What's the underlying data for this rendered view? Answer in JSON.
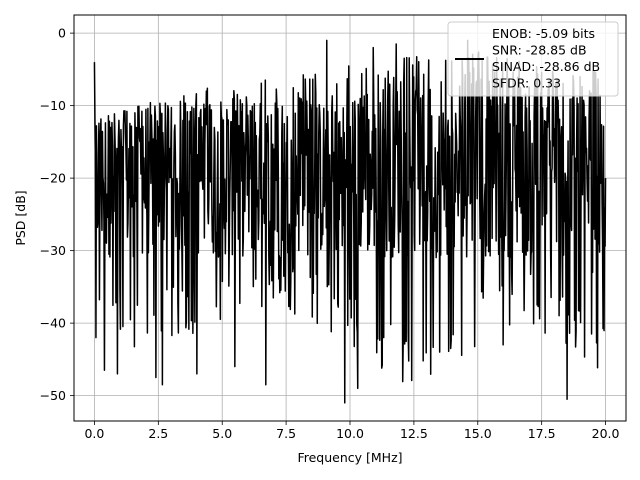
{
  "chart_data": {
    "type": "line",
    "xlabel": "Frequency [MHz]",
    "ylabel": "PSD [dB]",
    "xlim": [
      -0.8,
      20.8
    ],
    "ylim": [
      -53.5,
      2.5
    ],
    "xticks": [
      0.0,
      2.5,
      5.0,
      7.5,
      10.0,
      12.5,
      15.0,
      17.5,
      20.0
    ],
    "xtick_labels": [
      "0.0",
      "2.5",
      "5.0",
      "7.5",
      "10.0",
      "12.5",
      "15.0",
      "17.5",
      "20.0"
    ],
    "yticks": [
      0,
      -10,
      -20,
      -30,
      -40,
      -50
    ],
    "ytick_labels": [
      "0",
      "−10",
      "−20",
      "−30",
      "−40",
      "−50"
    ],
    "grid": true,
    "legend_position": "top-right",
    "series": [
      {
        "name": "ENOB: -5.09 bits\nSNR: -28.85 dB\nSINAD: -28.86 dB\nSFDR: 0.33",
        "color": "#000000",
        "x_range": [
          0.0,
          20.0
        ],
        "n_points": 1024,
        "envelope_top": [
          -12,
          -10,
          -8,
          -7,
          -6,
          -5,
          -4,
          -3,
          -2,
          -3,
          -4,
          -5
        ],
        "envelope_bottom": [
          -40,
          -45,
          -42,
          -40,
          -38,
          -41,
          -46,
          -50,
          -44,
          -40,
          -43,
          -48
        ],
        "noise_floor_mean": -20,
        "notable_points": [
          {
            "x": 0.0,
            "y": -4.0
          },
          {
            "x": 0.05,
            "y": -42.0
          },
          {
            "x": 0.4,
            "y": -46.5
          },
          {
            "x": 0.9,
            "y": -47.0
          },
          {
            "x": 2.4,
            "y": -47.5
          },
          {
            "x": 2.65,
            "y": -48.5
          },
          {
            "x": 4.0,
            "y": -47.0
          },
          {
            "x": 5.5,
            "y": -46.0
          },
          {
            "x": 6.7,
            "y": -48.5
          },
          {
            "x": 9.1,
            "y": -1.0
          },
          {
            "x": 9.8,
            "y": -51.0
          },
          {
            "x": 10.3,
            "y": -49.0
          },
          {
            "x": 10.9,
            "y": -2.0
          },
          {
            "x": 11.8,
            "y": -1.5
          },
          {
            "x": 13.5,
            "y": -44.0
          },
          {
            "x": 14.6,
            "y": -1.0
          },
          {
            "x": 16.0,
            "y": -43.0
          },
          {
            "x": 18.5,
            "y": -50.5
          },
          {
            "x": 19.5,
            "y": -33.0
          },
          {
            "x": 20.0,
            "y": -20.0
          }
        ]
      }
    ]
  }
}
